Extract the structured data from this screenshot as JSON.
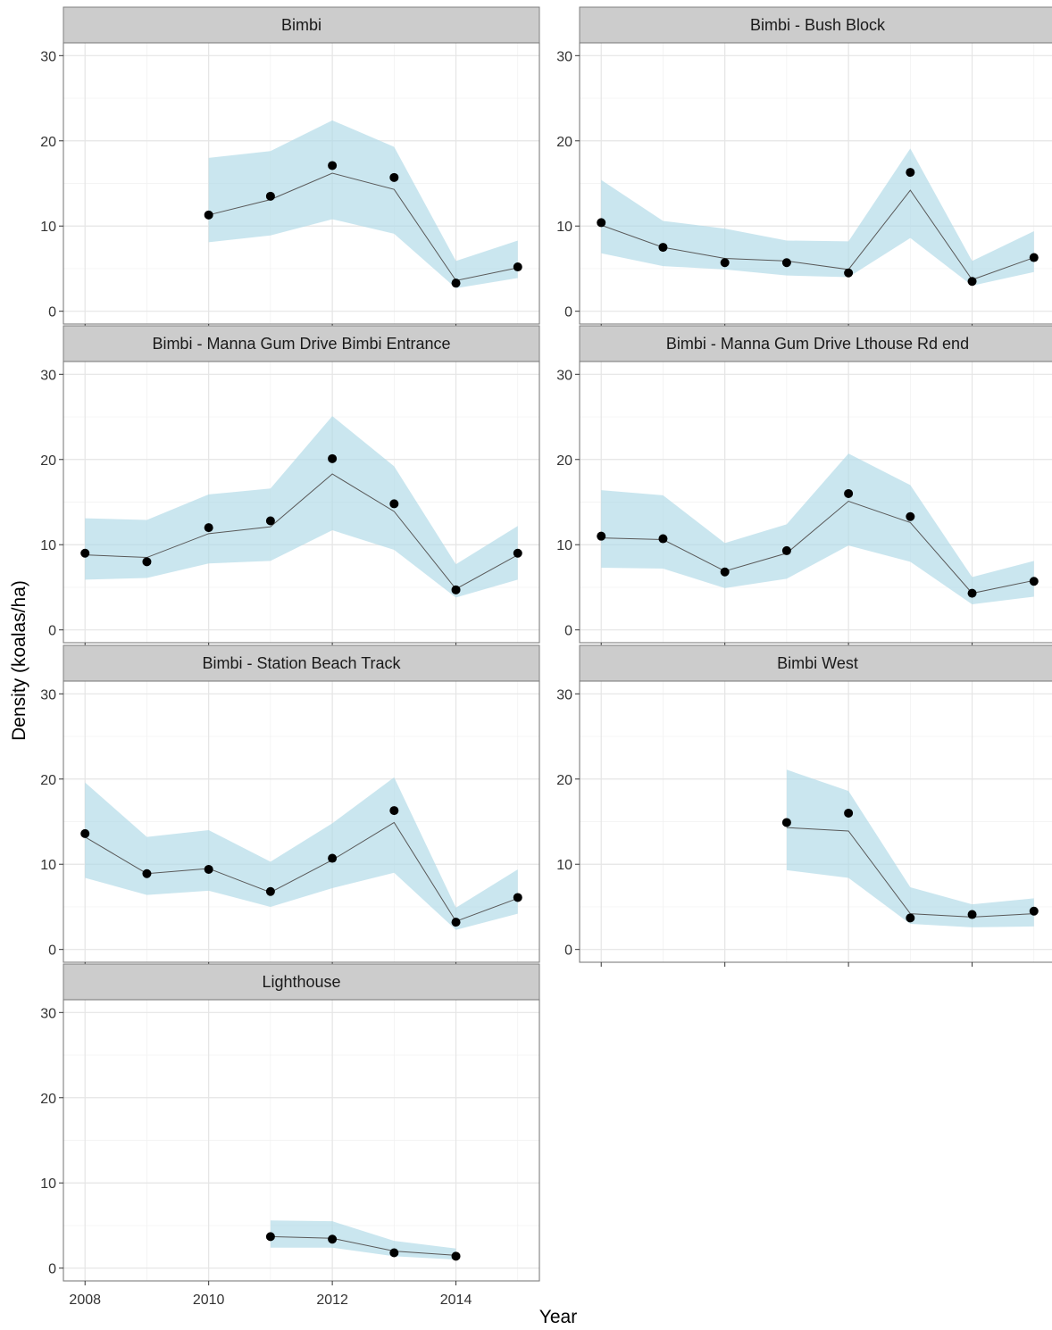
{
  "chart_data": {
    "type": "line",
    "xlabel": "Year",
    "ylabel": "Density (koalas/ha)",
    "xlim": [
      2007.65,
      2015.35
    ],
    "ylim": [
      -1.5,
      31.5
    ],
    "x_ticks": [
      2008,
      2010,
      2012,
      2014
    ],
    "y_ticks": [
      0,
      10,
      20,
      30
    ],
    "grid": true,
    "colors": {
      "band": "#add8e6",
      "line": "#595959",
      "point": "#000000",
      "strip": "#cccccc",
      "border": "#7f7f7f"
    },
    "panels": [
      {
        "title": "Bimbi",
        "x": [
          2010,
          2011,
          2012,
          2013,
          2014,
          2015
        ],
        "observed": [
          11.3,
          13.5,
          17.1,
          15.7,
          3.3,
          5.2
        ],
        "fitted": [
          11.3,
          13.1,
          16.2,
          14.3,
          3.6,
          5.1
        ],
        "lower": [
          8.1,
          8.9,
          10.8,
          9.1,
          2.7,
          3.9
        ],
        "upper": [
          18.0,
          18.8,
          22.4,
          19.3,
          5.9,
          8.3
        ]
      },
      {
        "title": "Bimbi - Bush Block",
        "x": [
          2008,
          2009,
          2010,
          2011,
          2012,
          2013,
          2014,
          2015
        ],
        "observed": [
          10.4,
          7.5,
          5.7,
          5.7,
          4.5,
          16.3,
          3.5,
          6.3
        ],
        "fitted": [
          10.1,
          7.5,
          6.2,
          5.9,
          4.9,
          14.2,
          3.7,
          6.3
        ],
        "lower": [
          6.8,
          5.3,
          4.9,
          4.2,
          4.0,
          8.6,
          3.0,
          4.6
        ],
        "upper": [
          15.4,
          10.6,
          9.7,
          8.3,
          8.2,
          19.1,
          5.9,
          9.4
        ]
      },
      {
        "title": "Bimbi - Manna Gum Drive Bimbi Entrance",
        "x": [
          2008,
          2009,
          2010,
          2011,
          2012,
          2013,
          2014,
          2015
        ],
        "observed": [
          9.0,
          8.0,
          12.0,
          12.8,
          20.1,
          14.8,
          4.7,
          9.0
        ],
        "fitted": [
          8.8,
          8.5,
          11.3,
          12.1,
          18.3,
          13.9,
          4.8,
          8.8
        ],
        "lower": [
          5.9,
          6.1,
          7.8,
          8.1,
          11.7,
          9.4,
          3.8,
          5.9
        ],
        "upper": [
          13.1,
          12.9,
          15.9,
          16.6,
          25.1,
          19.2,
          7.7,
          12.2
        ]
      },
      {
        "title": "Bimbi - Manna Gum Drive Lthouse Rd end",
        "x": [
          2008,
          2009,
          2010,
          2011,
          2012,
          2013,
          2014,
          2015
        ],
        "observed": [
          11.0,
          10.7,
          6.8,
          9.3,
          16.0,
          13.3,
          4.3,
          5.7
        ],
        "fitted": [
          10.8,
          10.6,
          6.9,
          9.0,
          15.1,
          12.6,
          4.3,
          5.8
        ],
        "lower": [
          7.3,
          7.2,
          4.9,
          6.0,
          9.9,
          8.0,
          3.0,
          3.9
        ],
        "upper": [
          16.4,
          15.8,
          10.2,
          12.4,
          20.7,
          17.0,
          6.2,
          8.1
        ]
      },
      {
        "title": "Bimbi - Station Beach Track",
        "x": [
          2008,
          2009,
          2010,
          2011,
          2012,
          2013,
          2014,
          2015
        ],
        "observed": [
          13.6,
          8.9,
          9.4,
          6.8,
          10.7,
          16.3,
          3.2,
          6.1
        ],
        "fitted": [
          13.2,
          8.9,
          9.5,
          6.7,
          10.5,
          14.9,
          3.3,
          6.0
        ],
        "lower": [
          8.4,
          6.4,
          6.9,
          5.0,
          7.2,
          9.0,
          2.3,
          4.2
        ],
        "upper": [
          19.6,
          13.2,
          14.0,
          10.3,
          14.8,
          20.2,
          4.9,
          9.4
        ]
      },
      {
        "title": "Bimbi West",
        "x": [
          2011,
          2012,
          2013,
          2014,
          2015
        ],
        "observed": [
          14.9,
          16.0,
          3.7,
          4.1,
          4.5
        ],
        "fitted": [
          14.3,
          13.9,
          4.2,
          3.8,
          4.2
        ],
        "lower": [
          9.3,
          8.4,
          3.0,
          2.6,
          2.7
        ],
        "upper": [
          21.1,
          18.6,
          7.3,
          5.3,
          6.0
        ]
      },
      {
        "title": "Lighthouse",
        "x": [
          2011,
          2012,
          2013,
          2014
        ],
        "observed": [
          3.7,
          3.4,
          1.8,
          1.4
        ],
        "fitted": [
          3.7,
          3.5,
          2.0,
          1.5
        ],
        "lower": [
          2.4,
          2.4,
          1.4,
          1.0
        ],
        "upper": [
          5.6,
          5.5,
          3.2,
          2.3
        ]
      }
    ]
  }
}
